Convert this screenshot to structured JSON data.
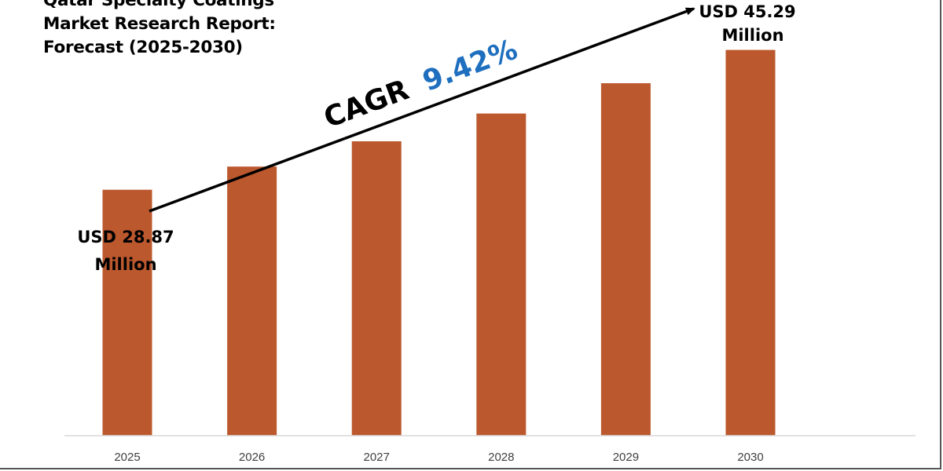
{
  "title_lines": [
    "Qatar Specialty Coatings",
    "Market Research Report:",
    "Forecast (2025-2030)"
  ],
  "annotations": {
    "start_value": "USD 28.87",
    "start_unit": "Million",
    "end_value": "USD 45.29",
    "end_unit": "Million",
    "cagr_label": "CAGR",
    "cagr_value": "9.42%"
  },
  "colors": {
    "bar": "#BC582D",
    "cagr_value": "#1F6FBF",
    "text": "#000000",
    "axis": "#D9D9D9"
  },
  "chart_data": {
    "type": "bar",
    "categories": [
      "2025",
      "2026",
      "2027",
      "2028",
      "2029",
      "2030"
    ],
    "values": [
      28.87,
      31.59,
      34.56,
      37.82,
      41.38,
      45.29
    ],
    "ylim": [
      0,
      50
    ],
    "grid": false,
    "legend": "none"
  }
}
